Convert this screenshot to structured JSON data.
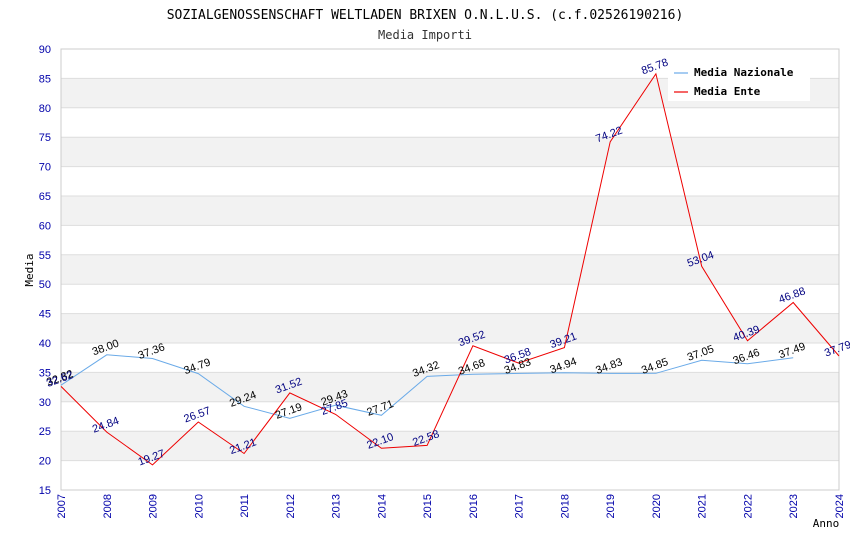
{
  "chart_data": {
    "type": "line",
    "title": "SOZIALGENOSSENSCHAFT WELTLADEN BRIXEN O.N.L.U.S. (c.f.02526190216)",
    "subtitle": "Media Importi",
    "xlabel": "Anno",
    "ylabel": "Media",
    "ylim": [
      15,
      90
    ],
    "yticks": [
      15,
      20,
      25,
      30,
      35,
      40,
      45,
      50,
      55,
      60,
      65,
      70,
      75,
      80,
      85,
      90
    ],
    "categories": [
      "2007",
      "2008",
      "2009",
      "2010",
      "2011",
      "2012",
      "2013",
      "2014",
      "2015",
      "2016",
      "2017",
      "2018",
      "2019",
      "2020",
      "2021",
      "2022",
      "2023",
      "2024"
    ],
    "legend_position": "top-right",
    "grid": true,
    "series": [
      {
        "name": "Media Nazionale",
        "color": "#6aaae8",
        "values": [
          32.82,
          38.0,
          37.36,
          34.79,
          29.24,
          27.19,
          29.43,
          27.71,
          34.32,
          34.68,
          34.83,
          34.94,
          34.83,
          34.85,
          37.05,
          36.46,
          37.49,
          null
        ],
        "labels": [
          "32.82",
          "38.00",
          "37.36",
          "34.79",
          "29.24",
          "27.19",
          "29.43",
          "27.71",
          "34.32",
          "34.68",
          "34.83",
          "34.94",
          "34.83",
          "34.85",
          "37.05",
          "36.46",
          "37.49",
          ""
        ]
      },
      {
        "name": "Media Ente",
        "color": "#ee0000",
        "values": [
          32.62,
          24.84,
          19.27,
          26.57,
          21.21,
          31.52,
          27.85,
          22.1,
          22.58,
          39.52,
          36.58,
          39.21,
          74.22,
          85.78,
          53.04,
          40.39,
          46.88,
          37.79
        ],
        "labels": [
          "32.62",
          "24.84",
          "19.27",
          "26.57",
          "21.21",
          "31.52",
          "27.85",
          "22.10",
          "22.58",
          "39.52",
          "36.58",
          "39.21",
          "74.22",
          "85.78",
          "53.04",
          "40.39",
          "46.88",
          "37.79"
        ]
      }
    ]
  }
}
